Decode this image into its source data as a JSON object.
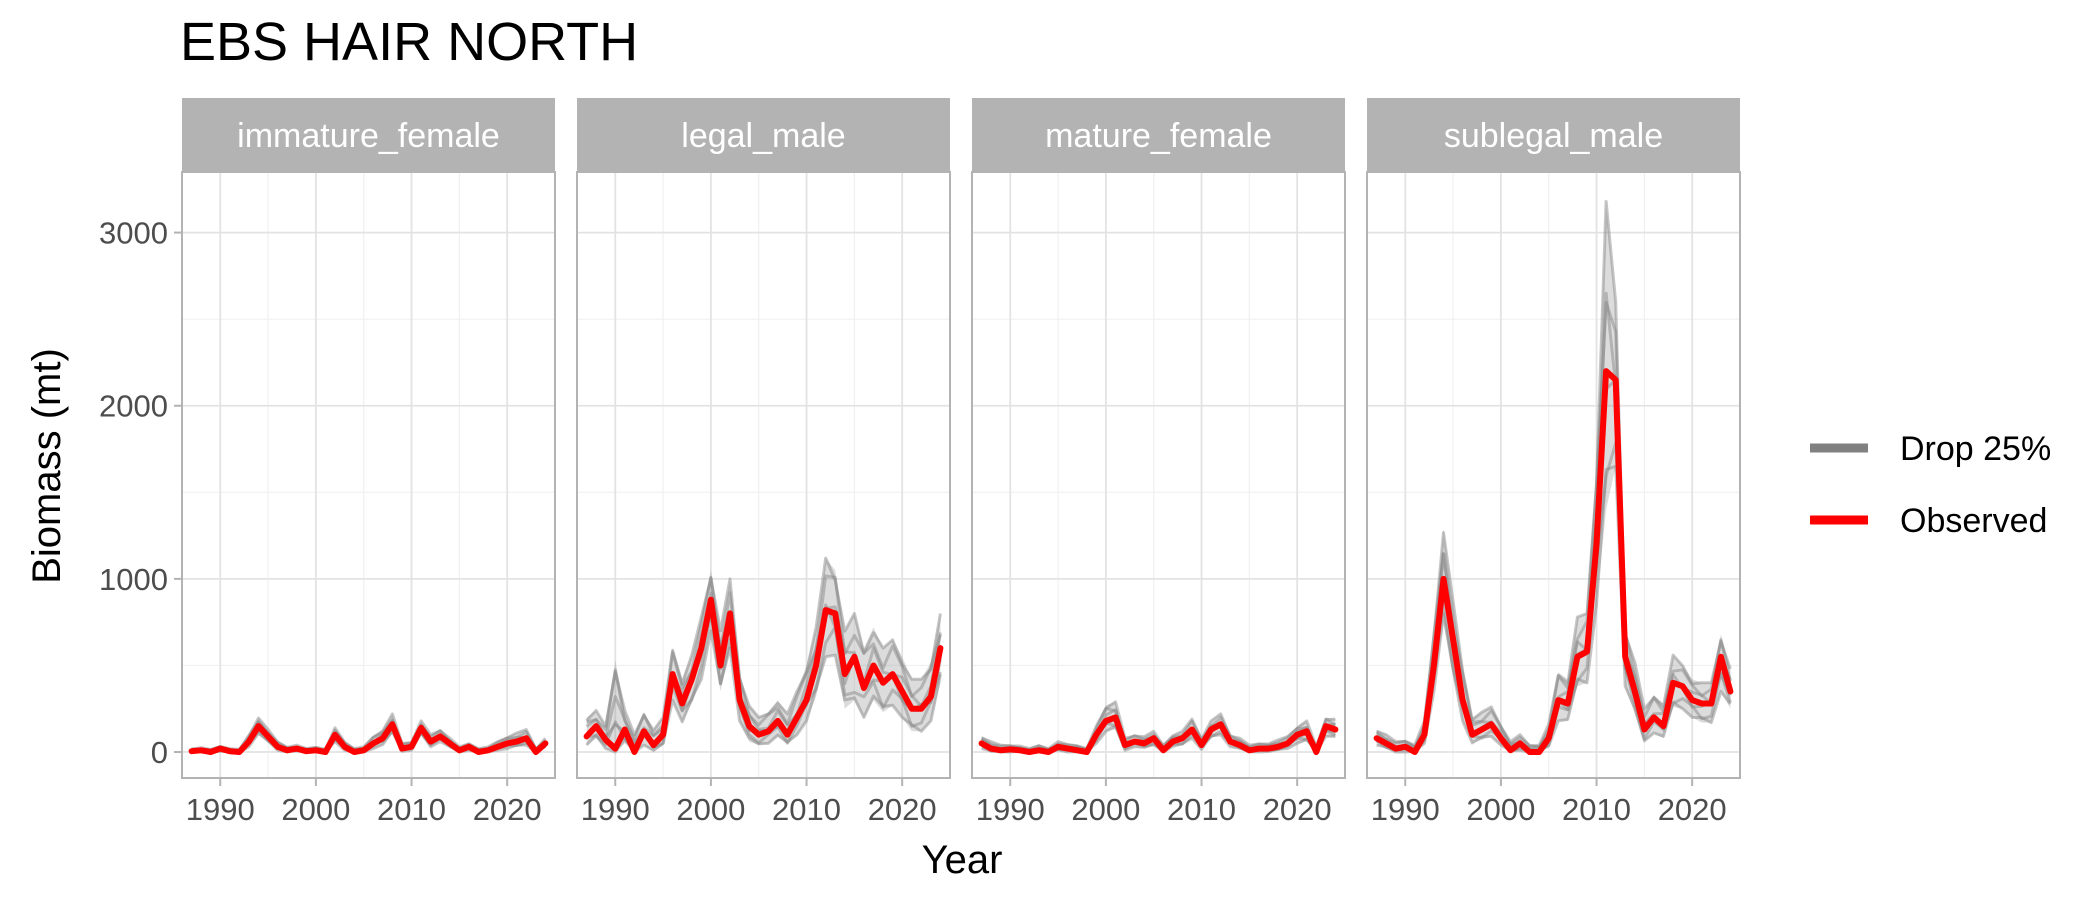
{
  "chart_data": {
    "type": "line",
    "title": "EBS HAIR NORTH",
    "xlabel": "Year",
    "ylabel": "Biomass (mt)",
    "xlim": [
      1986,
      2025
    ],
    "ylim": [
      -150,
      3350
    ],
    "x_ticks": [
      1990,
      2000,
      2010,
      2020
    ],
    "y_ticks": [
      0,
      1000,
      2000,
      3000
    ],
    "grid": true,
    "legend_position": "right",
    "legend": [
      {
        "label": "Drop 25%",
        "color": "#808080"
      },
      {
        "label": "Observed",
        "color": "#ff0000"
      }
    ],
    "panels": [
      {
        "label": "immature_female",
        "x": [
          1987,
          1988,
          1989,
          1990,
          1991,
          1992,
          1993,
          1994,
          1995,
          1996,
          1997,
          1998,
          1999,
          2000,
          2001,
          2002,
          2003,
          2004,
          2005,
          2006,
          2007,
          2008,
          2009,
          2010,
          2011,
          2012,
          2013,
          2014,
          2015,
          2016,
          2017,
          2018,
          2019,
          2020,
          2021,
          2022,
          2023,
          2024
        ],
        "observed": [
          5,
          10,
          0,
          20,
          5,
          0,
          60,
          150,
          90,
          30,
          10,
          20,
          5,
          10,
          0,
          100,
          30,
          0,
          10,
          50,
          80,
          160,
          20,
          30,
          140,
          60,
          90,
          50,
          10,
          30,
          0,
          10,
          30,
          50,
          60,
          80,
          0,
          50
        ],
        "drop_upper": [
          20,
          25,
          15,
          35,
          20,
          15,
          100,
          200,
          130,
          60,
          30,
          40,
          20,
          30,
          15,
          140,
          60,
          20,
          30,
          90,
          130,
          220,
          50,
          60,
          180,
          100,
          130,
          80,
          30,
          50,
          20,
          30,
          60,
          90,
          110,
          130,
          20,
          80
        ],
        "drop_lower": [
          0,
          0,
          0,
          5,
          0,
          0,
          30,
          100,
          60,
          10,
          0,
          5,
          0,
          0,
          0,
          60,
          10,
          0,
          0,
          20,
          40,
          110,
          5,
          10,
          100,
          30,
          60,
          25,
          0,
          10,
          0,
          0,
          10,
          20,
          30,
          40,
          0,
          25
        ]
      },
      {
        "label": "legal_male",
        "x": [
          1987,
          1988,
          1989,
          1990,
          1991,
          1992,
          1993,
          1994,
          1995,
          1996,
          1997,
          1998,
          1999,
          2000,
          2001,
          2002,
          2003,
          2004,
          2005,
          2006,
          2007,
          2008,
          2009,
          2010,
          2011,
          2012,
          2013,
          2014,
          2015,
          2016,
          2017,
          2018,
          2019,
          2020,
          2021,
          2022,
          2023,
          2024
        ],
        "observed": [
          90,
          150,
          70,
          20,
          130,
          0,
          120,
          40,
          100,
          450,
          280,
          420,
          600,
          880,
          500,
          800,
          300,
          150,
          100,
          120,
          180,
          100,
          200,
          300,
          500,
          820,
          800,
          450,
          550,
          370,
          500,
          400,
          450,
          350,
          250,
          250,
          320,
          600
        ],
        "drop_upper": [
          200,
          240,
          150,
          530,
          240,
          100,
          230,
          130,
          200,
          600,
          420,
          560,
          780,
          1050,
          700,
          1000,
          450,
          270,
          200,
          230,
          300,
          220,
          350,
          500,
          720,
          1120,
          1050,
          700,
          800,
          600,
          720,
          600,
          650,
          550,
          420,
          420,
          520,
          800
        ],
        "drop_lower": [
          40,
          80,
          20,
          0,
          50,
          0,
          40,
          0,
          40,
          300,
          170,
          280,
          420,
          700,
          350,
          600,
          180,
          60,
          40,
          50,
          90,
          40,
          100,
          180,
          320,
          550,
          560,
          250,
          300,
          200,
          300,
          230,
          270,
          200,
          120,
          120,
          180,
          400
        ]
      },
      {
        "label": "mature_female",
        "x": [
          1987,
          1988,
          1989,
          1990,
          1991,
          1992,
          1993,
          1994,
          1995,
          1996,
          1997,
          1998,
          1999,
          2000,
          2001,
          2002,
          2003,
          2004,
          2005,
          2006,
          2007,
          2008,
          2009,
          2010,
          2011,
          2012,
          2013,
          2014,
          2015,
          2016,
          2017,
          2018,
          2019,
          2020,
          2021,
          2022,
          2023,
          2024
        ],
        "observed": [
          50,
          20,
          10,
          15,
          10,
          0,
          10,
          0,
          30,
          20,
          10,
          0,
          100,
          180,
          200,
          40,
          60,
          50,
          80,
          10,
          60,
          80,
          130,
          40,
          130,
          160,
          60,
          40,
          10,
          20,
          20,
          30,
          50,
          100,
          120,
          0,
          150,
          130
        ],
        "drop_upper": [
          90,
          60,
          40,
          40,
          35,
          20,
          40,
          20,
          60,
          45,
          40,
          20,
          150,
          270,
          290,
          80,
          100,
          90,
          120,
          40,
          100,
          120,
          190,
          80,
          180,
          220,
          100,
          80,
          40,
          50,
          50,
          70,
          90,
          150,
          180,
          30,
          200,
          190
        ],
        "drop_lower": [
          20,
          0,
          0,
          0,
          0,
          0,
          0,
          0,
          10,
          0,
          0,
          0,
          50,
          120,
          130,
          10,
          30,
          20,
          40,
          0,
          30,
          40,
          80,
          15,
          80,
          100,
          30,
          15,
          0,
          0,
          0,
          10,
          20,
          50,
          60,
          0,
          90,
          80
        ]
      },
      {
        "label": "sublegal_male",
        "x": [
          1987,
          1988,
          1989,
          1990,
          1991,
          1992,
          1993,
          1994,
          1995,
          1996,
          1997,
          1998,
          1999,
          2000,
          2001,
          2002,
          2003,
          2004,
          2005,
          2006,
          2007,
          2008,
          2009,
          2010,
          2011,
          2012,
          2013,
          2014,
          2015,
          2016,
          2017,
          2018,
          2019,
          2020,
          2021,
          2022,
          2023,
          2024
        ],
        "observed": [
          80,
          50,
          20,
          30,
          0,
          100,
          500,
          1000,
          650,
          300,
          100,
          130,
          160,
          80,
          10,
          50,
          0,
          0,
          80,
          300,
          280,
          550,
          580,
          1200,
          2200,
          2150,
          550,
          350,
          130,
          200,
          150,
          400,
          380,
          300,
          280,
          280,
          550,
          350
        ],
        "drop_upper": [
          130,
          100,
          60,
          70,
          40,
          180,
          700,
          1290,
          870,
          480,
          200,
          230,
          260,
          160,
          60,
          100,
          40,
          40,
          160,
          460,
          420,
          780,
          800,
          1650,
          3180,
          2600,
          720,
          520,
          250,
          330,
          280,
          560,
          500,
          420,
          400,
          400,
          680,
          480
        ],
        "drop_lower": [
          40,
          20,
          0,
          0,
          0,
          50,
          350,
          750,
          450,
          180,
          50,
          70,
          90,
          40,
          0,
          10,
          0,
          0,
          30,
          180,
          180,
          380,
          400,
          850,
          1400,
          1650,
          380,
          220,
          60,
          110,
          80,
          260,
          250,
          200,
          170,
          170,
          350,
          250
        ]
      }
    ]
  }
}
